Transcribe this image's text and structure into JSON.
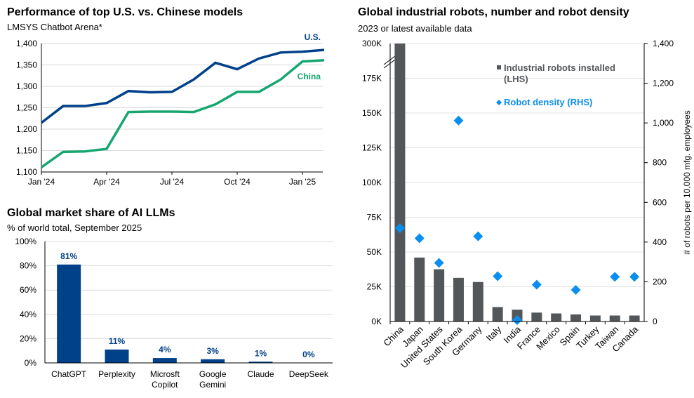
{
  "chart_data": [
    {
      "type": "line",
      "title": "Performance of top U.S. vs. Chinese models",
      "subtitle": "LMSYS Chatbot Arena*",
      "x": [
        "2024-01",
        "2024-02",
        "2024-03",
        "2024-04",
        "2024-05",
        "2024-06",
        "2024-07",
        "2024-08",
        "2024-09",
        "2024-10",
        "2024-11",
        "2024-12",
        "2025-01",
        "2025-02"
      ],
      "xticks": [
        "Jan '24",
        "Apr '24",
        "Jul '24",
        "Oct '24",
        "Jan '25"
      ],
      "yticks": [
        "1,100",
        "1,150",
        "1,200",
        "1,250",
        "1,300",
        "1,350",
        "1,400"
      ],
      "ylim": [
        1100,
        1400
      ],
      "grid": true,
      "series": [
        {
          "name": "U.S.",
          "color": "#00418a",
          "values": [
            1215,
            1254,
            1254,
            1261,
            1289,
            1286,
            1287,
            1316,
            1355,
            1340,
            1365,
            1379,
            1381,
            1385
          ]
        },
        {
          "name": "China",
          "color": "#16a66f",
          "values": [
            1111,
            1147,
            1148,
            1154,
            1240,
            1241,
            1241,
            1240,
            1258,
            1287,
            1287,
            1316,
            1358,
            1361
          ]
        }
      ]
    },
    {
      "type": "bar",
      "title": "Global market share of AI LLMs",
      "subtitle": "% of world total, September 2025",
      "categories": [
        "ChatGPT",
        "Perplexity",
        "Microsft Copilot",
        "Google Gemini",
        "Claude",
        "DeepSeek"
      ],
      "values": [
        81,
        11,
        4,
        3,
        1,
        0
      ],
      "labels": [
        "81%",
        "11%",
        "4%",
        "3%",
        "1%",
        "0%"
      ],
      "color": "#00418a",
      "yticks": [
        "0%",
        "20%",
        "40%",
        "60%",
        "80%",
        "100%"
      ],
      "ylim": [
        0,
        100
      ],
      "grid": true
    },
    {
      "type": "bar",
      "title": "Global industrial robots, number and robot density",
      "subtitle": "2023 or latest available data",
      "categories": [
        "China",
        "Japan",
        "United States",
        "South Korea",
        "Germany",
        "Italy",
        "India",
        "France",
        "Mexico",
        "Spain",
        "Turkey",
        "Taiwan",
        "Canada"
      ],
      "series": [
        {
          "name": "Industrial robots installed (LHS)",
          "type": "bar",
          "color": "#54575a",
          "values": [
            276000,
            46000,
            37600,
            31400,
            28400,
            10400,
            8500,
            6400,
            5800,
            5100,
            4300,
            4300,
            4300
          ]
        },
        {
          "name": "Robot density (RHS)",
          "type": "scatter",
          "color": "#0a8ff0",
          "values": [
            470,
            419,
            295,
            1012,
            429,
            228,
            7,
            185,
            null,
            159,
            null,
            225,
            225
          ]
        }
      ],
      "yticks_left": [
        "0K",
        "25K",
        "50K",
        "75K",
        "100K",
        "125K",
        "150K",
        "175K",
        "300K"
      ],
      "axis_break": true,
      "yticks_right": [
        "0",
        "200",
        "400",
        "600",
        "800",
        "1,000",
        "1,200",
        "1,400"
      ],
      "ylim_right": [
        0,
        1400
      ],
      "ylabel_right": "# of robots per 10,000 mfg. employees",
      "grid": true,
      "legend": "top-right"
    }
  ]
}
